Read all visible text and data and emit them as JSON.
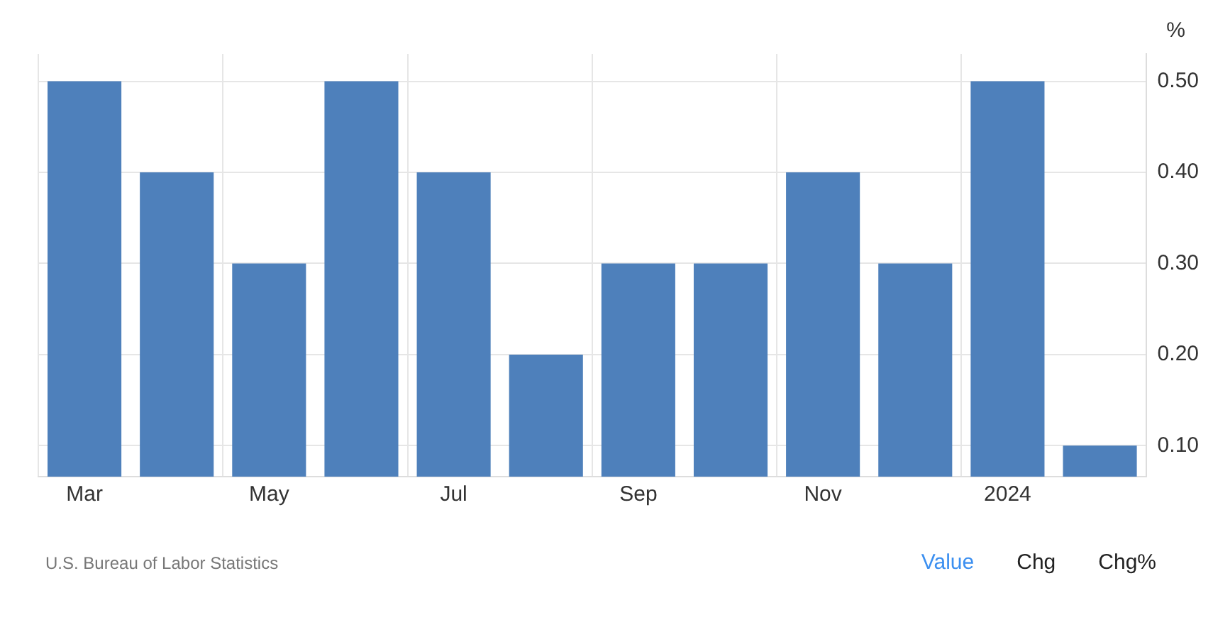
{
  "chart_data": {
    "type": "bar",
    "ylabel": "%",
    "categories": [
      "Mar",
      null,
      "May",
      null,
      "Jul",
      null,
      "Sep",
      null,
      "Nov",
      null,
      "2024",
      null
    ],
    "values": [
      0.5,
      0.4,
      0.3,
      0.5,
      0.4,
      0.2,
      0.3,
      0.3,
      0.4,
      0.3,
      0.5,
      0.1
    ],
    "color": "#4e80bb",
    "ylim": [
      0.066,
      0.53
    ],
    "yticks": [
      {
        "value": 0.1,
        "label": "0.10"
      },
      {
        "value": 0.2,
        "label": "0.20"
      },
      {
        "value": 0.3,
        "label": "0.30"
      },
      {
        "value": 0.4,
        "label": "0.40"
      },
      {
        "value": 0.5,
        "label": "0.50"
      }
    ],
    "grid": true,
    "annotations": [
      "U.S. Bureau of Labor Statistics",
      "Value",
      "Chg",
      "Chg%"
    ]
  }
}
